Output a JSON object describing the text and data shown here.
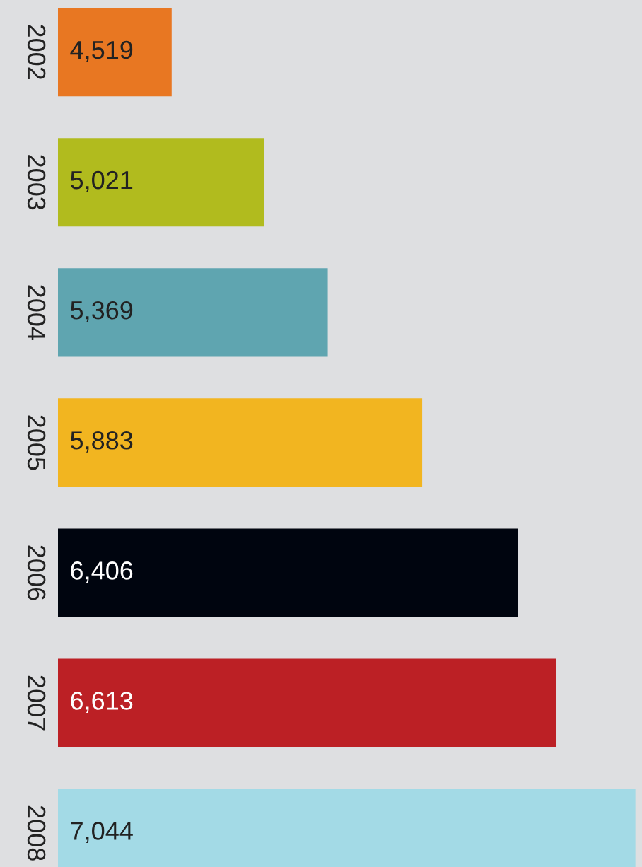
{
  "chart_data": {
    "type": "bar",
    "orientation": "horizontal",
    "categories": [
      "2002",
      "2003",
      "2004",
      "2005",
      "2006",
      "2007",
      "2008"
    ],
    "values": [
      4519,
      5021,
      5369,
      5883,
      6406,
      6613,
      7044
    ],
    "value_labels": [
      "4,519",
      "5,021",
      "5,369",
      "5,883",
      "6,406",
      "6,613",
      "7,044"
    ],
    "colors": [
      "#e87722",
      "#b1bb1e",
      "#5fa5b0",
      "#f2b520",
      "#00050f",
      "#bc2025",
      "#a3dae6"
    ],
    "xlim": [
      3900,
      7080
    ],
    "tick_labels": "y",
    "grid": false,
    "legend": false
  }
}
